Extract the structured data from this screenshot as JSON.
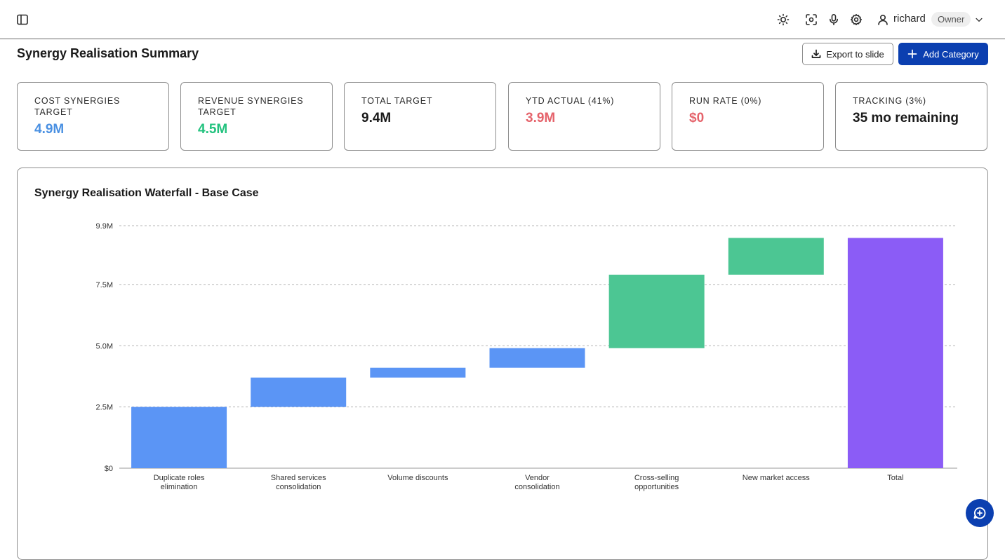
{
  "header": {
    "user_name": "richard",
    "role": "Owner",
    "icons": [
      "sidebar-toggle-icon",
      "sun-icon",
      "screen-capture-icon",
      "microphone-icon",
      "gear-icon",
      "user-icon",
      "chevron-down-icon"
    ]
  },
  "page": {
    "title": "Synergy Realisation Summary",
    "export_label": "Export to slide",
    "add_label": "Add Category"
  },
  "cards": [
    {
      "label": "COST SYNERGIES TARGET",
      "value": "4.9M",
      "color": "#4a90e2"
    },
    {
      "label": "REVENUE SYNERGIES TARGET",
      "value": "4.5M",
      "color": "#22c27e"
    },
    {
      "label": "TOTAL TARGET",
      "value": "9.4M",
      "color": "#1a1a1a"
    },
    {
      "label": "YTD ACTUAL (41%)",
      "value": "3.9M",
      "color": "#e5636b"
    },
    {
      "label": "RUN RATE (0%)",
      "value": "$0",
      "color": "#e5636b"
    },
    {
      "label": "TRACKING (3%)",
      "value": "35 mo remaining",
      "color": "#1a1a1a"
    }
  ],
  "chart": {
    "title": "Synergy Realisation Waterfall - Base Case"
  },
  "chart_data": {
    "type": "bar",
    "subtype": "waterfall",
    "title": "Synergy Realisation Waterfall - Base Case",
    "ylim": [
      0,
      9.9
    ],
    "y_unit": "M",
    "yticks": [
      {
        "value": 0,
        "label": "$0"
      },
      {
        "value": 2.5,
        "label": "2.5M"
      },
      {
        "value": 5.0,
        "label": "5.0M"
      },
      {
        "value": 7.5,
        "label": "7.5M"
      },
      {
        "value": 9.9,
        "label": "9.9M"
      }
    ],
    "grid": true,
    "categories": [
      [
        "Duplicate roles",
        "elimination"
      ],
      [
        "Shared services",
        "consolidation"
      ],
      [
        "Volume discounts"
      ],
      [
        "Vendor",
        "consolidation"
      ],
      [
        "Cross-selling",
        "opportunities"
      ],
      [
        "New market access"
      ],
      [
        "Total"
      ]
    ],
    "bars": [
      {
        "start": 0,
        "end": 2.5,
        "kind": "cost"
      },
      {
        "start": 2.5,
        "end": 3.7,
        "kind": "cost"
      },
      {
        "start": 3.7,
        "end": 4.1,
        "kind": "cost"
      },
      {
        "start": 4.1,
        "end": 4.9,
        "kind": "cost"
      },
      {
        "start": 4.9,
        "end": 7.9,
        "kind": "revenue"
      },
      {
        "start": 7.9,
        "end": 9.4,
        "kind": "revenue"
      },
      {
        "start": 0,
        "end": 9.4,
        "kind": "total"
      }
    ],
    "colors": {
      "cost": "#5b95f5",
      "revenue": "#4cc693",
      "total": "#8b5cf6"
    }
  }
}
